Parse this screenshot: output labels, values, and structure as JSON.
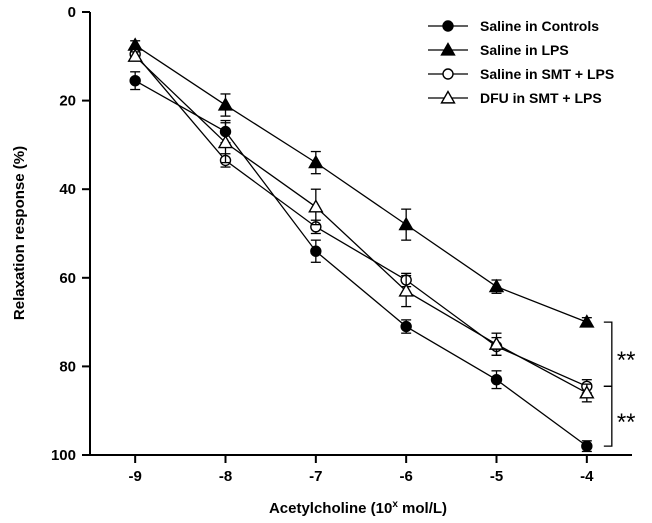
{
  "chart_data": {
    "type": "line",
    "xlabel_main": "Acetylcholine (10",
    "xlabel_sup": "x",
    "xlabel_end": " mol/L)",
    "ylabel": "Relaxation response (%)",
    "x": [
      -9,
      -8,
      -7,
      -6,
      -5,
      -4
    ],
    "x_tick_labels": [
      "-9",
      "-8",
      "-7",
      "-6",
      "-5",
      "-4"
    ],
    "xlim": [
      -9.5,
      -3.5
    ],
    "ylim": [
      0,
      100
    ],
    "y_inverted": true,
    "y_ticks": [
      0,
      20,
      40,
      60,
      80,
      100
    ],
    "y_tick_labels": [
      "0",
      "20",
      "40",
      "60",
      "80",
      "100"
    ],
    "grid": false,
    "legend_position": "top-right",
    "series": [
      {
        "name": "Saline in Controls",
        "marker": "circle",
        "fill": "filled",
        "values": [
          15.5,
          27,
          54,
          71,
          83,
          98
        ],
        "errors": [
          2,
          2.5,
          2.5,
          1.5,
          2,
          1.2
        ]
      },
      {
        "name": "Saline in LPS",
        "marker": "triangle",
        "fill": "filled",
        "values": [
          7.5,
          21,
          34,
          48,
          62,
          70
        ],
        "errors": [
          1,
          2.5,
          2.5,
          3.5,
          1.5,
          1
        ]
      },
      {
        "name": "Saline in SMT + LPS",
        "marker": "circle",
        "fill": "open",
        "values": [
          9.5,
          33.5,
          48.5,
          60.5,
          75.5,
          84.5
        ],
        "errors": [
          1.5,
          1.5,
          1.5,
          1.5,
          2,
          1.5
        ]
      },
      {
        "name": "DFU in SMT + LPS",
        "marker": "triangle",
        "fill": "open",
        "values": [
          10,
          29.5,
          44,
          63,
          75,
          86
        ],
        "errors": [
          1,
          4.5,
          4,
          3.5,
          2.5,
          2
        ]
      }
    ],
    "annotations": [
      {
        "text": "**",
        "between": [
          "Saline in LPS",
          "Saline in SMT + LPS"
        ]
      },
      {
        "text": "**",
        "between": [
          "Saline in SMT + LPS",
          "Saline in Controls"
        ]
      }
    ]
  }
}
